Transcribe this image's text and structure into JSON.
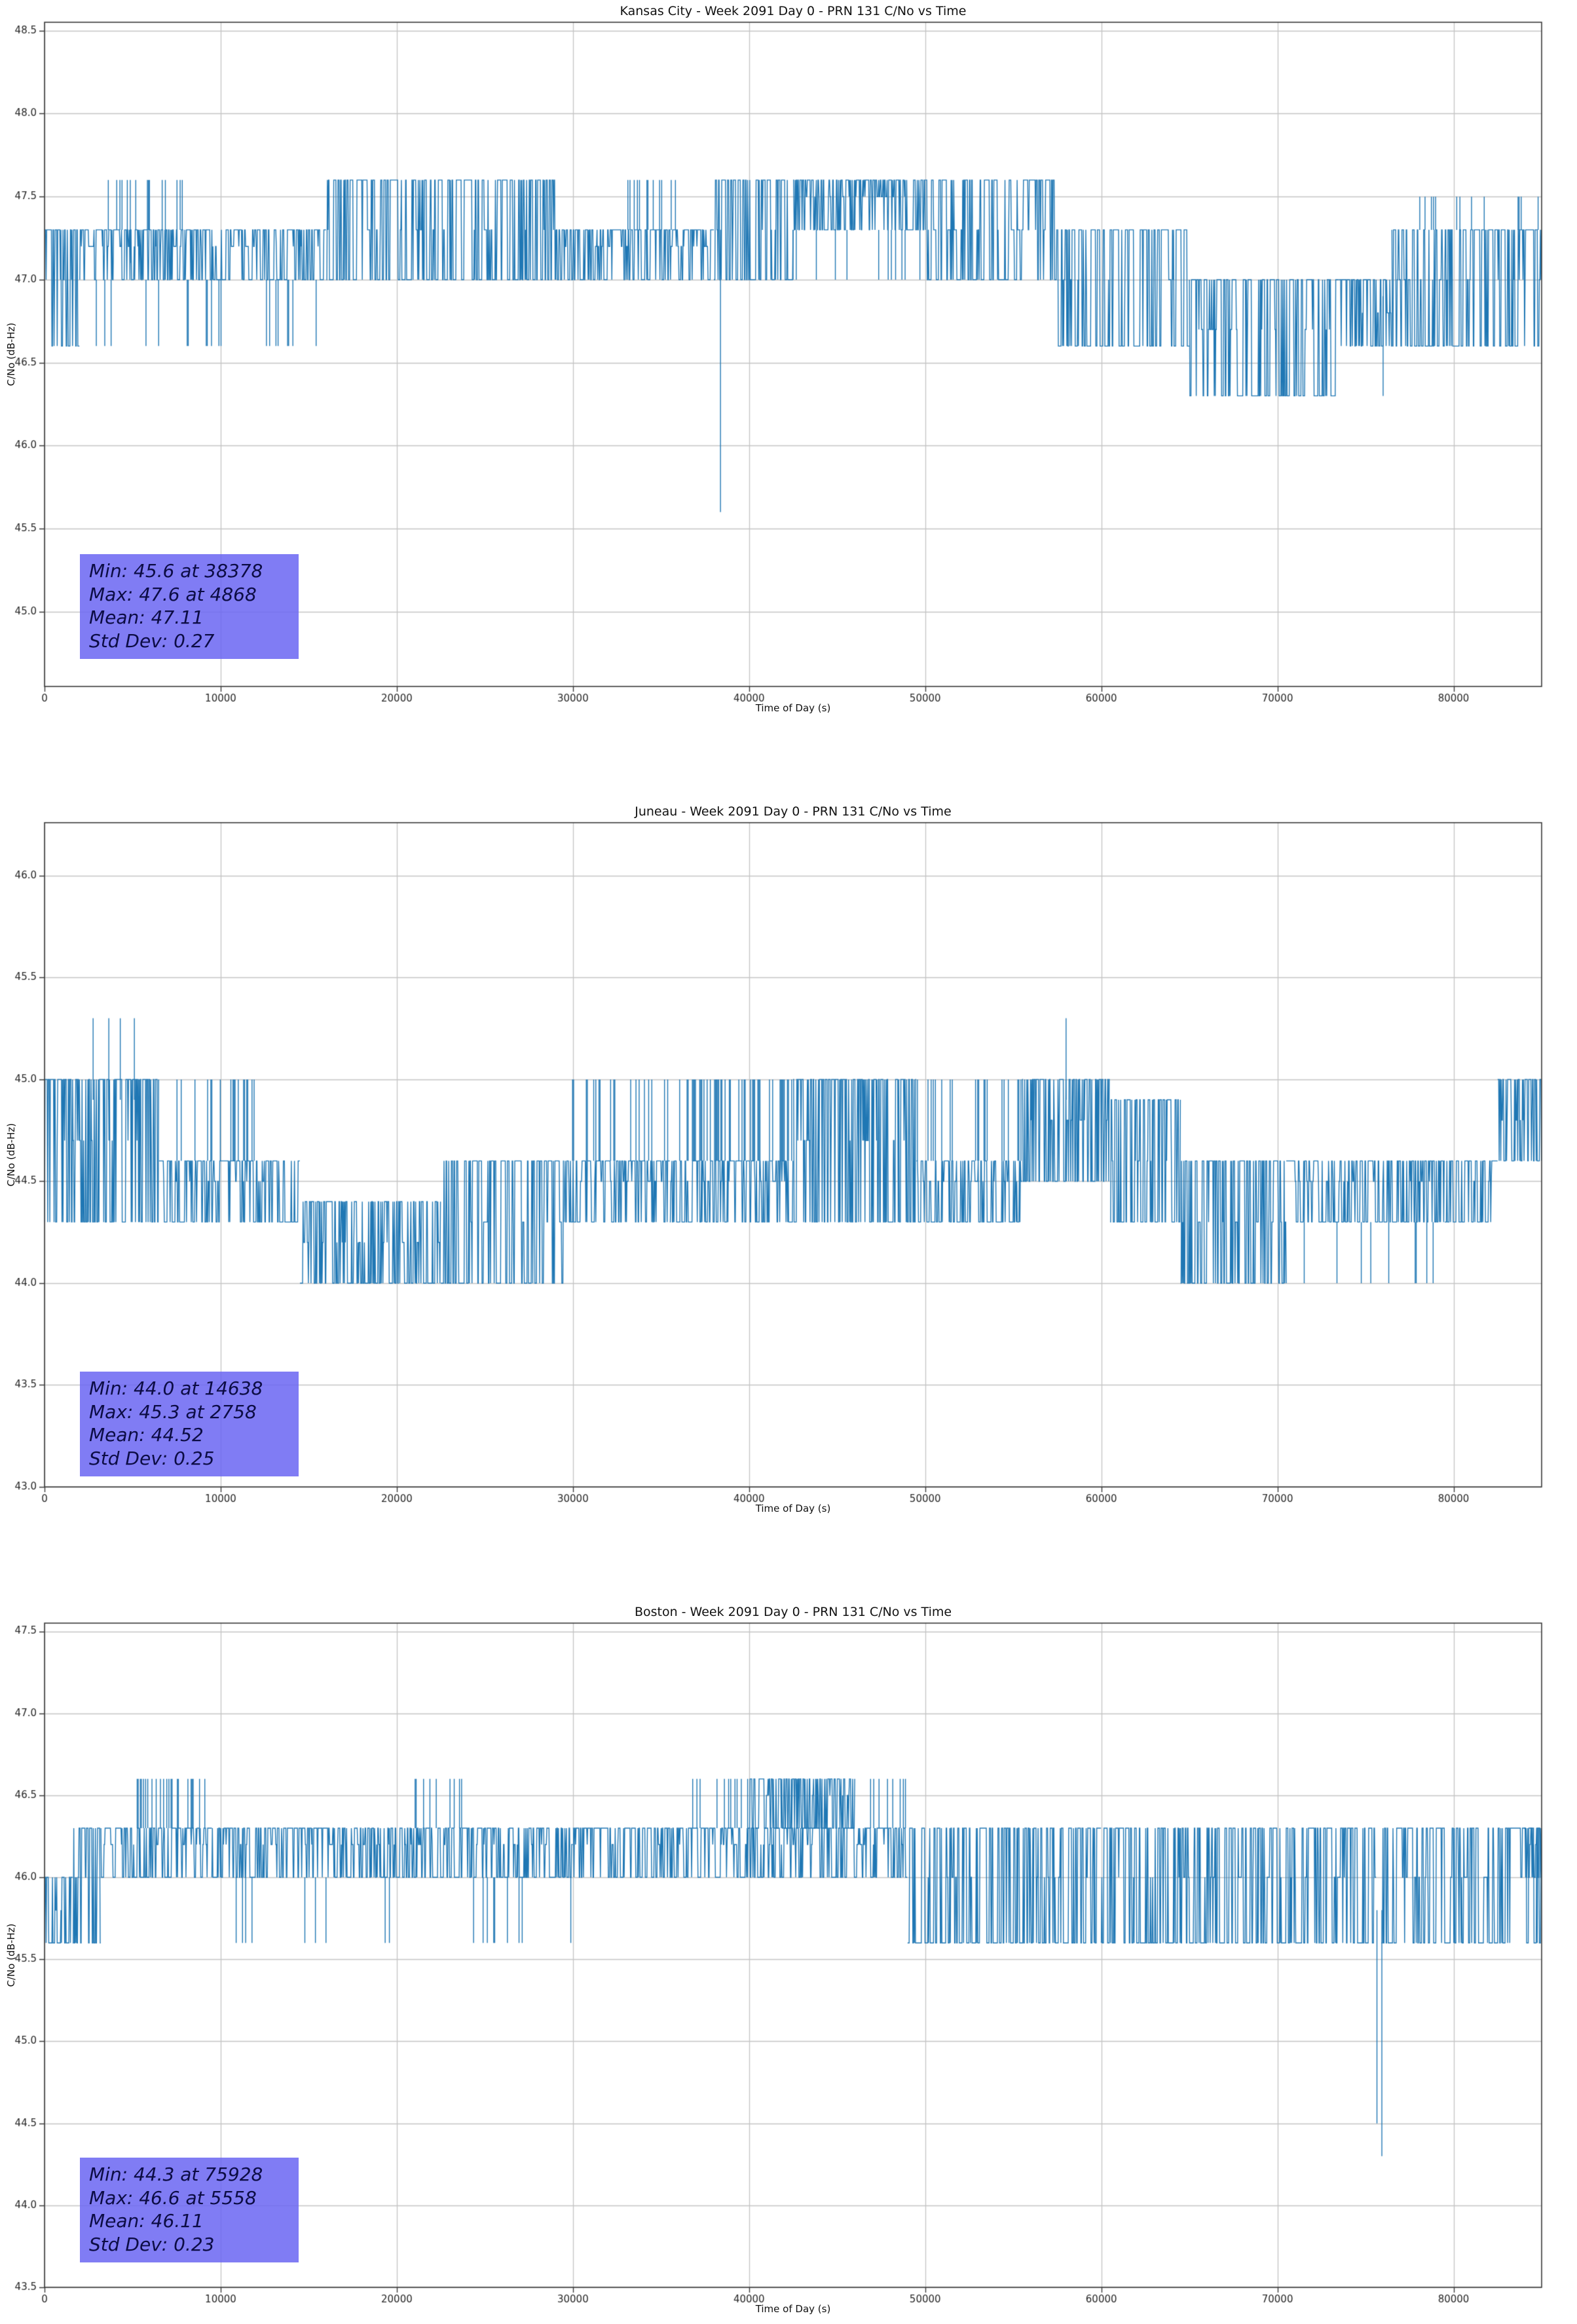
{
  "figure": {
    "line": "#1f77b4",
    "grid": "#c4c4c4",
    "spine": "#3a3a3a",
    "tick_label": "#262626",
    "stats_bg": "rgba(106,101,242,0.85)",
    "stats_text": "#0c0c44"
  },
  "chart_data": [
    {
      "type": "line",
      "station": "Kansas City",
      "title": "Kansas City - Week 2091 Day 0 - PRN 131 C/No vs Time",
      "xlabel": "Time of Day (s)",
      "ylabel": "C/No (dB-Hz)",
      "xlim": [
        0,
        85000
      ],
      "ylim": [
        44.55,
        48.55
      ],
      "xticks": [
        0,
        10000,
        20000,
        30000,
        40000,
        50000,
        60000,
        70000,
        80000
      ],
      "yticks": [
        45.0,
        45.5,
        46.0,
        46.5,
        47.0,
        47.5,
        48.0,
        48.5
      ],
      "grid": true,
      "legend": "none",
      "stats": [
        "Min: 45.6 at 38378",
        "Max: 47.6 at 4868",
        "Mean: 47.11",
        "Std Dev: 0.27"
      ],
      "seed": 11,
      "segments": [
        [
          0,
          2000,
          46.6,
          47.3,
          0.6,
          0.7,
          "b"
        ],
        [
          2000,
          16000,
          47.0,
          47.3,
          0.6,
          0.55,
          "b"
        ],
        [
          1500,
          15500,
          46.6,
          47.0,
          0.5,
          0.08,
          "t"
        ],
        [
          3500,
          8000,
          47.3,
          47.6,
          0.5,
          0.18,
          "t"
        ],
        [
          16000,
          29000,
          47.0,
          47.6,
          0.5,
          0.5,
          "b"
        ],
        [
          29000,
          38000,
          47.0,
          47.3,
          0.6,
          0.5,
          "b"
        ],
        [
          33000,
          36000,
          47.3,
          47.6,
          0.5,
          0.2,
          "t"
        ],
        [
          38000,
          42500,
          47.0,
          47.6,
          0.55,
          0.6,
          "b"
        ],
        [
          42500,
          50000,
          47.3,
          47.6,
          0.6,
          0.75,
          "b"
        ],
        [
          42500,
          50000,
          47.0,
          47.3,
          0.5,
          0.1,
          "t"
        ],
        [
          50000,
          57500,
          47.0,
          47.6,
          0.5,
          0.5,
          "b"
        ],
        [
          57500,
          65000,
          46.6,
          47.3,
          0.5,
          0.55,
          "b"
        ],
        [
          65000,
          73500,
          46.3,
          47.0,
          0.5,
          0.6,
          "b"
        ],
        [
          73500,
          76500,
          46.6,
          47.0,
          0.6,
          0.6,
          "b"
        ],
        [
          76500,
          85000,
          46.6,
          47.3,
          0.55,
          0.55,
          "b"
        ],
        [
          77000,
          85000,
          47.3,
          47.5,
          0.5,
          0.1,
          "t"
        ]
      ],
      "spikes": [
        [
          38378,
          45.6,
          47.0
        ],
        [
          4868,
          47.6,
          47.1
        ],
        [
          76000,
          46.3,
          46.9
        ]
      ]
    },
    {
      "type": "line",
      "station": "Juneau",
      "title": "Juneau - Week 2091 Day 0 - PRN 131 C/No vs Time",
      "xlabel": "Time of Day (s)",
      "ylabel": "C/No (dB-Hz)",
      "xlim": [
        0,
        85000
      ],
      "ylim": [
        43.0,
        46.26
      ],
      "xticks": [
        0,
        10000,
        20000,
        30000,
        40000,
        50000,
        60000,
        70000,
        80000
      ],
      "yticks": [
        43.0,
        43.5,
        44.0,
        44.5,
        45.0,
        45.5,
        46.0
      ],
      "grid": true,
      "legend": "none",
      "stats": [
        "Min: 44.0 at 14638",
        "Max: 45.3 at 2758",
        "Mean: 44.52",
        "Std Dev: 0.25"
      ],
      "seed": 22,
      "segments": [
        [
          0,
          6500,
          44.3,
          45.0,
          0.6,
          0.8,
          "b"
        ],
        [
          6500,
          12000,
          44.3,
          44.6,
          0.55,
          0.6,
          "b"
        ],
        [
          6500,
          12000,
          44.6,
          45.0,
          0.5,
          0.18,
          "t"
        ],
        [
          12000,
          14500,
          44.3,
          44.6,
          0.5,
          0.55,
          "b"
        ],
        [
          14500,
          22500,
          44.0,
          44.4,
          0.45,
          0.7,
          "b"
        ],
        [
          22500,
          29500,
          44.0,
          44.6,
          0.5,
          0.55,
          "b"
        ],
        [
          29500,
          35500,
          44.3,
          44.6,
          0.55,
          0.6,
          "b"
        ],
        [
          29500,
          35500,
          44.6,
          45.0,
          0.5,
          0.2,
          "t"
        ],
        [
          35500,
          42500,
          44.3,
          44.6,
          0.5,
          0.6,
          "b"
        ],
        [
          36000,
          42500,
          44.6,
          45.0,
          0.5,
          0.35,
          "t"
        ],
        [
          42500,
          49500,
          44.3,
          45.0,
          0.6,
          0.75,
          "b"
        ],
        [
          49500,
          55500,
          44.3,
          44.6,
          0.5,
          0.6,
          "b"
        ],
        [
          49500,
          55500,
          44.6,
          45.0,
          0.5,
          0.2,
          "t"
        ],
        [
          55500,
          60500,
          44.5,
          45.0,
          0.65,
          0.8,
          "b"
        ],
        [
          60500,
          64500,
          44.3,
          44.9,
          0.5,
          0.55,
          "b"
        ],
        [
          64500,
          70500,
          44.0,
          44.6,
          0.5,
          0.65,
          "b"
        ],
        [
          70500,
          79500,
          44.3,
          44.6,
          0.5,
          0.55,
          "b"
        ],
        [
          70500,
          79500,
          44.0,
          44.3,
          0.5,
          0.12,
          "t"
        ],
        [
          79500,
          82500,
          44.3,
          44.6,
          0.55,
          0.6,
          "b"
        ],
        [
          82500,
          85000,
          44.6,
          45.0,
          0.6,
          0.8,
          "b"
        ]
      ],
      "spikes": [
        [
          2758,
          45.3,
          44.9
        ],
        [
          3650,
          45.3,
          44.9
        ],
        [
          4300,
          45.3,
          44.9
        ],
        [
          5100,
          45.3,
          44.9
        ],
        [
          58000,
          45.3,
          44.9
        ]
      ]
    },
    {
      "type": "line",
      "station": "Boston",
      "title": "Boston - Week 2091 Day 0 - PRN 131 C/No vs Time",
      "xlabel": "Time of Day (s)",
      "ylabel": "C/No (dB-Hz)",
      "xlim": [
        0,
        85000
      ],
      "ylim": [
        43.5,
        47.55
      ],
      "xticks": [
        0,
        10000,
        20000,
        30000,
        40000,
        50000,
        60000,
        70000,
        80000
      ],
      "yticks": [
        43.5,
        44.0,
        44.5,
        45.0,
        45.5,
        46.0,
        46.5,
        47.0,
        47.5
      ],
      "grid": true,
      "legend": "none",
      "stats": [
        "Min: 44.3 at 75928",
        "Max: 46.6 at 5558",
        "Mean: 46.11",
        "Std Dev: 0.23"
      ],
      "seed": 33,
      "segments": [
        [
          0,
          1600,
          45.6,
          46.0,
          0.5,
          0.8,
          "b"
        ],
        [
          1600,
          3200,
          45.6,
          46.3,
          0.5,
          0.6,
          "b"
        ],
        [
          3200,
          9500,
          46.0,
          46.3,
          0.6,
          0.6,
          "b"
        ],
        [
          5200,
          9500,
          46.3,
          46.6,
          0.5,
          0.3,
          "t"
        ],
        [
          9500,
          20000,
          46.0,
          46.3,
          0.55,
          0.6,
          "b"
        ],
        [
          9500,
          20000,
          45.6,
          46.0,
          0.5,
          0.07,
          "t"
        ],
        [
          20000,
          30000,
          46.0,
          46.3,
          0.55,
          0.6,
          "b"
        ],
        [
          20500,
          24000,
          46.3,
          46.6,
          0.5,
          0.12,
          "t"
        ],
        [
          24000,
          30000,
          45.6,
          46.0,
          0.5,
          0.08,
          "t"
        ],
        [
          30000,
          36500,
          46.0,
          46.3,
          0.6,
          0.65,
          "b"
        ],
        [
          36500,
          49000,
          46.0,
          46.3,
          0.55,
          0.6,
          "b"
        ],
        [
          36500,
          40000,
          46.3,
          46.6,
          0.5,
          0.2,
          "t"
        ],
        [
          40000,
          46000,
          46.3,
          46.6,
          0.55,
          0.7,
          "b"
        ],
        [
          46000,
          49000,
          46.3,
          46.6,
          0.5,
          0.25,
          "t"
        ],
        [
          49000,
          60000,
          45.6,
          46.3,
          0.5,
          0.55,
          "b"
        ],
        [
          60000,
          75600,
          45.6,
          46.3,
          0.5,
          0.55,
          "b"
        ],
        [
          75900,
          85000,
          45.6,
          46.3,
          0.55,
          0.55,
          "b"
        ],
        [
          84000,
          85000,
          46.0,
          46.3,
          0.6,
          0.8,
          "b"
        ]
      ],
      "spikes": [
        [
          75650,
          44.5,
          45.8
        ],
        [
          75928,
          44.3,
          45.8
        ]
      ]
    }
  ]
}
